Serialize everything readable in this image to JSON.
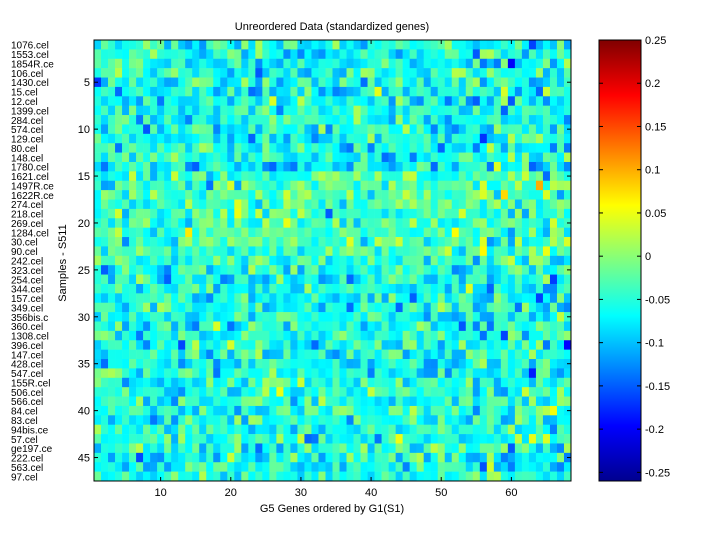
{
  "chart_data": {
    "type": "heatmap",
    "title": "Unreordered Data (standardized genes)",
    "xlabel": "G5 Genes ordered by G1(S1)",
    "ylabel": "Samples - S511",
    "x_range": [
      1,
      68
    ],
    "y_range": [
      1,
      47
    ],
    "x_ticks": [
      10,
      20,
      30,
      40,
      50,
      60
    ],
    "y_ticks": [
      5,
      10,
      15,
      20,
      25,
      30,
      35,
      40,
      45
    ],
    "colormap": "jet",
    "color_range": [
      -0.26,
      0.25
    ],
    "colorbar_ticks": [
      0.25,
      0.2,
      0.15,
      0.1,
      0.05,
      0,
      -0.05,
      -0.1,
      -0.15,
      -0.2,
      -0.25
    ],
    "row_labels": [
      "1076.cel",
      "1553.cel",
      "1854R.ce",
      "106.cel",
      "1430.cel",
      "15.cel",
      "12.cel",
      "1399.cel",
      "284.cel",
      "574.cel",
      "129.cel",
      "80.cel",
      "148.cel",
      "1780.cel",
      "1621.cel",
      "1497R.ce",
      "1622R.ce",
      "274.cel",
      "218.cel",
      "269.cel",
      "1284.cel",
      "30.cel",
      "90.cel",
      "242.cel",
      "323.cel",
      "254.cel",
      "344.cel",
      "157.cel",
      "349.cel",
      "356bis.c",
      "360.cel",
      "1308.cel",
      "396.cel",
      "147.cel",
      "428.cel",
      "547.cel",
      "155R.cel",
      "506.cel",
      "566.cel",
      "84.cel",
      "83.cel",
      "94bis.ce",
      "57.cel",
      "ge197.ce",
      "222.cel",
      "563.cel",
      "97.cel"
    ],
    "rows": 47,
    "cols": 68,
    "values_note": ""
  }
}
